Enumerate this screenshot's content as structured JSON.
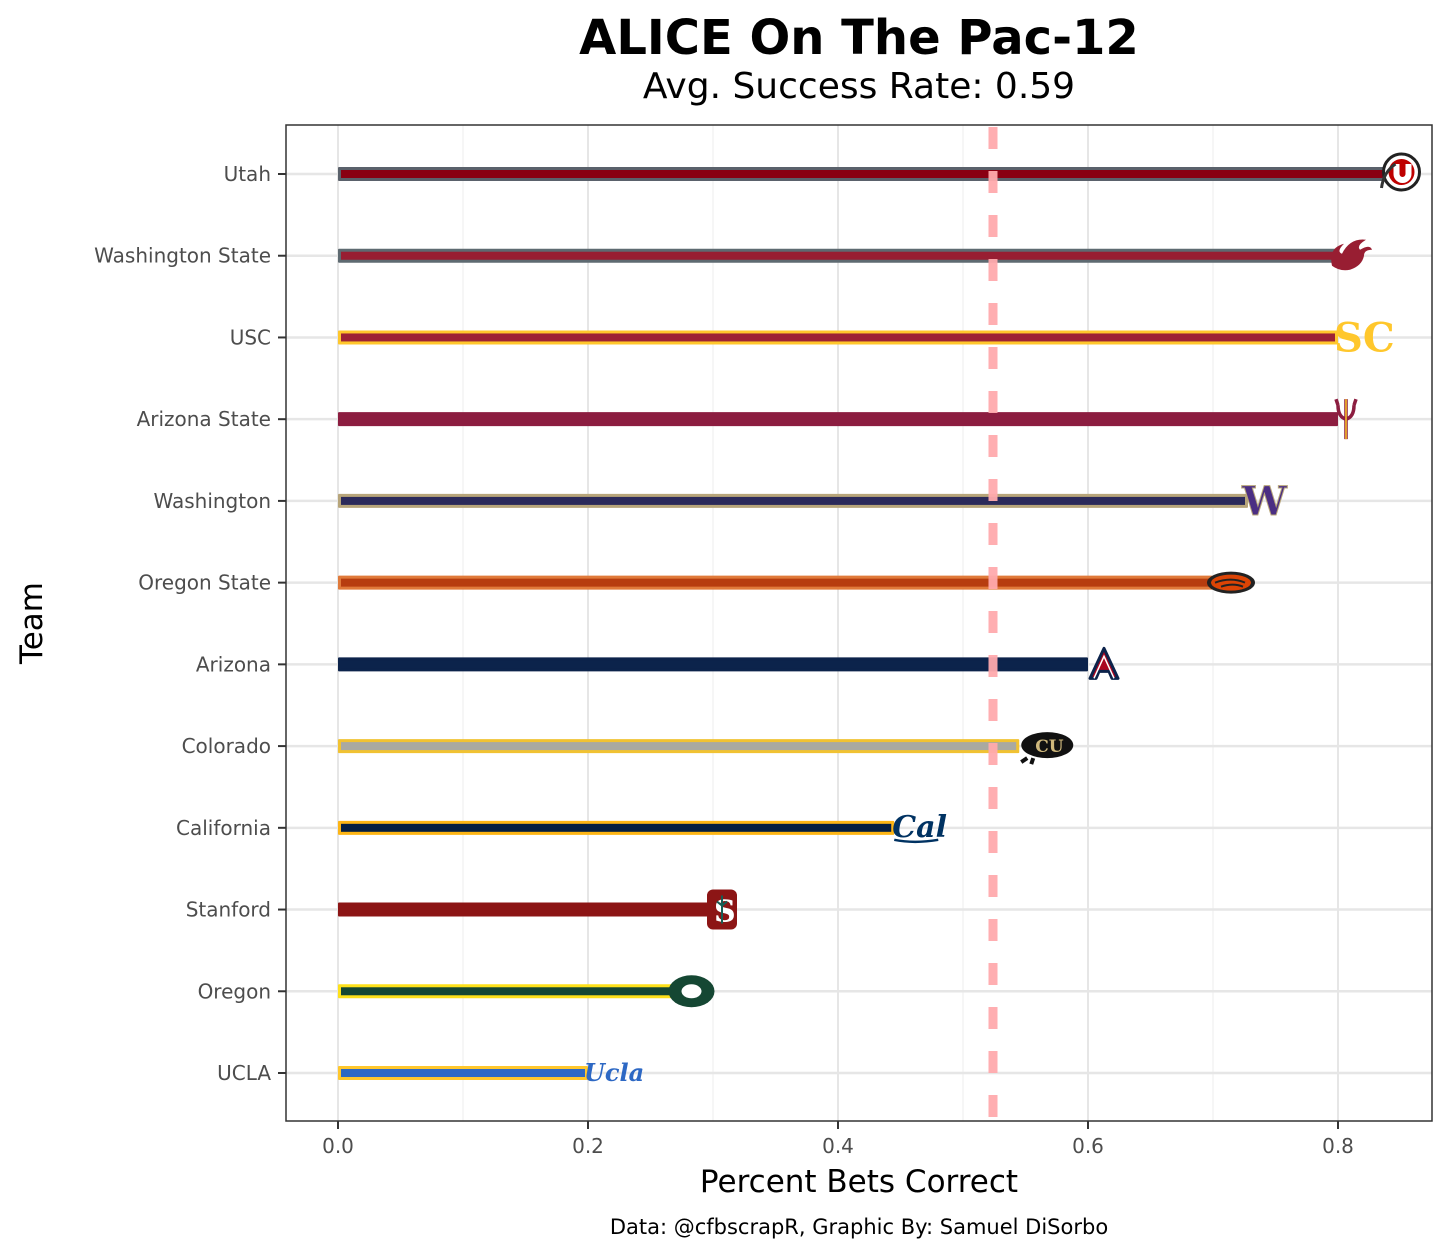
{
  "chart_data": {
    "type": "bar",
    "orientation": "horizontal",
    "title": "ALICE On The Pac-12",
    "subtitle": "Avg. Success Rate: 0.59",
    "xlabel": "Percent Bets Correct",
    "ylabel": "Team",
    "caption": "Data: @cfbscrapR, Graphic By: Samuel DiSorbo",
    "xlim": [
      -0.04,
      0.87
    ],
    "xticks": [
      0.0,
      0.2,
      0.4,
      0.6,
      0.8
    ],
    "xtick_labels": [
      "0.0",
      "0.2",
      "0.4",
      "0.6",
      "0.8"
    ],
    "reference_line": {
      "value": 0.524,
      "style": "dashed",
      "color": "#ffaaad"
    },
    "grid": true,
    "categories": [
      "Utah",
      "Washington State",
      "USC",
      "Arizona State",
      "Washington",
      "Oregon State",
      "Arizona",
      "Colorado",
      "California",
      "Stanford",
      "Oregon",
      "UCLA"
    ],
    "values": [
      0.838,
      0.8,
      0.8,
      0.8,
      0.728,
      0.7,
      0.6,
      0.545,
      0.445,
      0.3,
      0.27,
      0.2
    ],
    "colors": [
      {
        "outline": "#5a616b",
        "fill": "#890012"
      },
      {
        "outline": "#5e6a71",
        "fill": "#981e32"
      },
      {
        "outline": "#ffc72c",
        "fill": "#9d2235"
      },
      {
        "outline": "#8c1d40",
        "fill": "#8c1d40"
      },
      {
        "outline": "#b7a57a",
        "fill": "#2b2a5a"
      },
      {
        "outline": "#e07a3a",
        "fill": "#b73d0f"
      },
      {
        "outline": "#0c234b",
        "fill": "#0c234b"
      },
      {
        "outline": "#f1c232",
        "fill": "#a9a9a1"
      },
      {
        "outline": "#fdb515",
        "fill": "#041e42"
      },
      {
        "outline": "#8c1515",
        "fill": "#8c1515"
      },
      {
        "outline": "#fee11a",
        "fill": "#154733"
      },
      {
        "outline": "#ffc72c",
        "fill": "#2d68c4"
      }
    ],
    "logos": [
      "utah-logo-icon",
      "washington-state-logo-icon",
      "usc-logo-icon",
      "arizona-state-logo-icon",
      "washington-logo-icon",
      "oregon-state-logo-icon",
      "arizona-logo-icon",
      "colorado-logo-icon",
      "california-logo-icon",
      "stanford-logo-icon",
      "oregon-logo-icon",
      "ucla-logo-icon"
    ]
  }
}
